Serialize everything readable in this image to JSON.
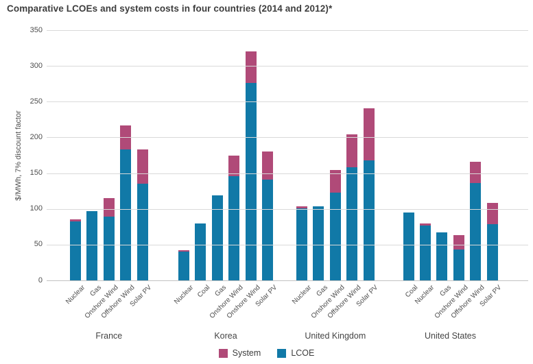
{
  "title": "Comparative LCOEs and system costs in four countries (2014 and 2012)*",
  "chart_data": {
    "type": "bar",
    "stacked": true,
    "title": "Comparative LCOEs and system costs in four countries (2014 and 2012)*",
    "xlabel": "",
    "ylabel": "$/MWh, 7% discount factor",
    "ylim": [
      0,
      350
    ],
    "yticks": [
      0,
      50,
      100,
      150,
      200,
      250,
      300,
      350
    ],
    "grid": "horizontal",
    "legend_position": "bottom-center",
    "legend": [
      {
        "name": "System",
        "color": "#b04a78"
      },
      {
        "name": "LCOE",
        "color": "#1179a7"
      }
    ],
    "colors": {
      "system": "#b04a78",
      "lcoe": "#1179a7",
      "gridline": "#d9d9d9",
      "axis_text": "#4d4d4d",
      "title_text": "#3d3d3d"
    },
    "groups": [
      {
        "label": "France",
        "bars": [
          {
            "category": "Nuclear",
            "lcoe": 82,
            "system": 3,
            "total": 85
          },
          {
            "category": "Gas",
            "lcoe": 97,
            "system": 0,
            "total": 97
          },
          {
            "category": "Onshore Wind",
            "lcoe": 89,
            "system": 26,
            "total": 115
          },
          {
            "category": "Offshore Wind",
            "lcoe": 183,
            "system": 34,
            "total": 217
          },
          {
            "category": "Solar PV",
            "lcoe": 135,
            "system": 48,
            "total": 183
          }
        ]
      },
      {
        "label": "Korea",
        "bars": [
          {
            "category": "Nuclear",
            "lcoe": 40,
            "system": 2,
            "total": 42
          },
          {
            "category": "Coal",
            "lcoe": 80,
            "system": 0,
            "total": 80
          },
          {
            "category": "Gas",
            "lcoe": 119,
            "system": 0,
            "total": 119
          },
          {
            "category": "Onshore Wind",
            "lcoe": 146,
            "system": 29,
            "total": 175
          },
          {
            "category": "Onshore Wind",
            "lcoe": 276,
            "system": 44,
            "total": 320
          },
          {
            "category": "Solar PV",
            "lcoe": 141,
            "system": 39,
            "total": 180
          }
        ]
      },
      {
        "label": "United Kingdom",
        "bars": [
          {
            "category": "Nuclear",
            "lcoe": 101,
            "system": 3,
            "total": 104
          },
          {
            "category": "Gas",
            "lcoe": 104,
            "system": 0,
            "total": 104
          },
          {
            "category": "Onshore Wind",
            "lcoe": 123,
            "system": 31,
            "total": 154
          },
          {
            "category": "Offshore Wind",
            "lcoe": 158,
            "system": 46,
            "total": 204
          },
          {
            "category": "Solar PV",
            "lcoe": 168,
            "system": 73,
            "total": 241
          }
        ]
      },
      {
        "label": "United States",
        "bars": [
          {
            "category": "Coal",
            "lcoe": 95,
            "system": 0,
            "total": 95
          },
          {
            "category": "Nuclear",
            "lcoe": 77,
            "system": 3,
            "total": 80
          },
          {
            "category": "Gas",
            "lcoe": 67,
            "system": 0,
            "total": 67
          },
          {
            "category": "Onshore Wind",
            "lcoe": 43,
            "system": 20,
            "total": 63
          },
          {
            "category": "Offshore Wind",
            "lcoe": 136,
            "system": 30,
            "total": 166
          },
          {
            "category": "Solar PV",
            "lcoe": 79,
            "system": 29,
            "total": 108
          }
        ]
      }
    ]
  }
}
